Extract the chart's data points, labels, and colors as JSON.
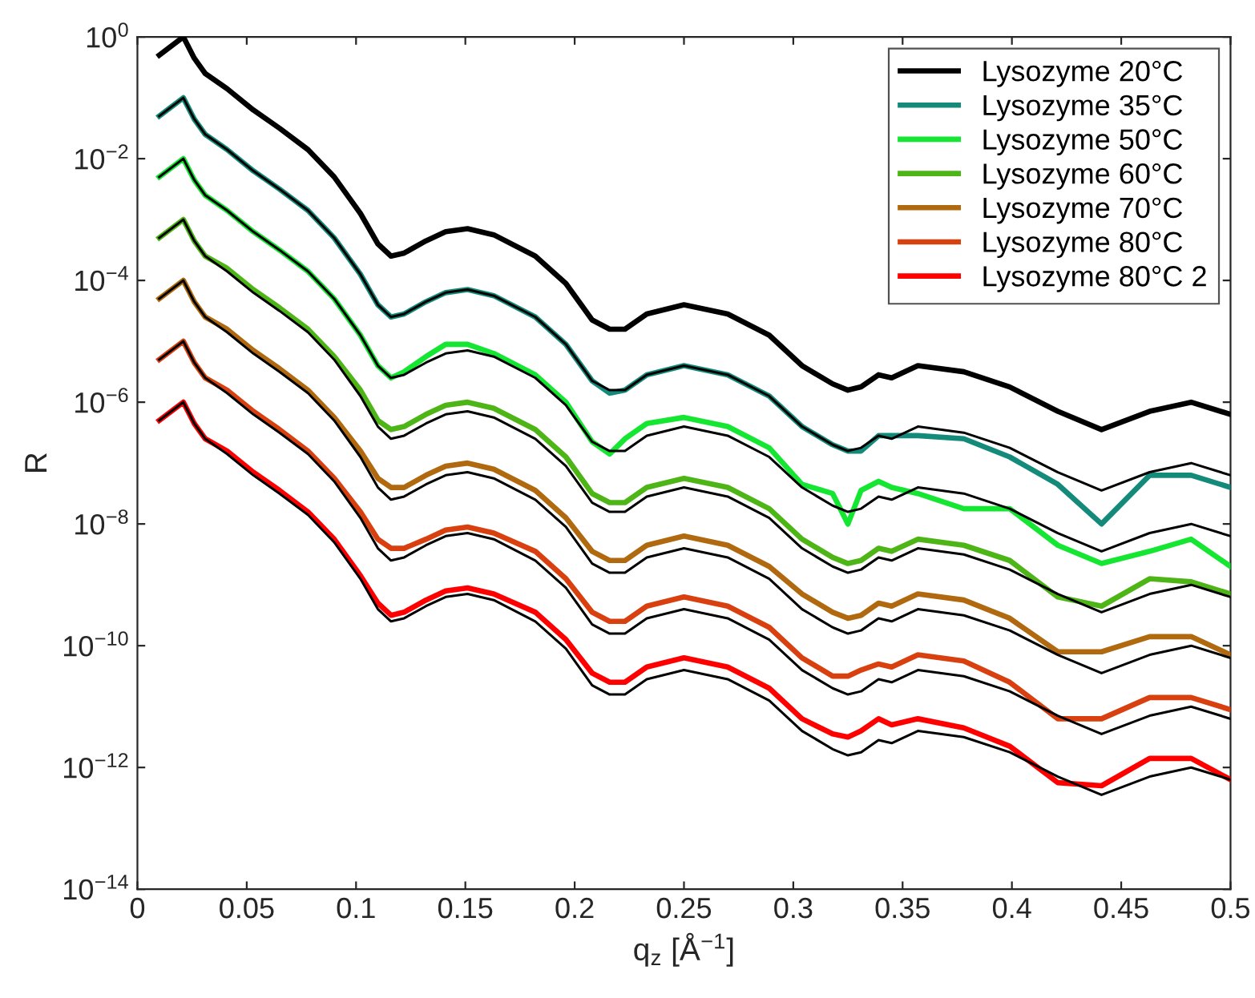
{
  "chart_data": {
    "type": "line",
    "log": "y",
    "legend": "top right",
    "xlabel": "q$_{z}$ [Å$^{−1}$]",
    "ylabel": "R",
    "xlim": [
      0,
      0.5
    ],
    "xticks": [
      0,
      0.05,
      0.1,
      0.15,
      0.2,
      0.25,
      0.3,
      0.35,
      0.4,
      0.45,
      0.5
    ],
    "ylim": [
      1e-14,
      1
    ],
    "yticks": [
      {
        "value": 1e-14,
        "label": "10$^{−14}$"
      },
      {
        "value": 1e-12,
        "label": "10$^{−12}$"
      },
      {
        "value": 1e-10,
        "label": "10$^{−10}$"
      },
      {
        "value": 1e-08,
        "label": "10$^{−8}$"
      },
      {
        "value": 1e-06,
        "label": "10$^{−6}$"
      },
      {
        "value": 0.0001,
        "label": "10$^{−4}$"
      },
      {
        "value": 0.01,
        "label": "10$^{−2}$"
      },
      {
        "value": 1,
        "label": "10$^{0}$"
      }
    ],
    "x": [
      0.01,
      0.021,
      0.026,
      0.031,
      0.041,
      0.053,
      0.065,
      0.078,
      0.09,
      0.102,
      0.11,
      0.116,
      0.122,
      0.132,
      0.141,
      0.151,
      0.163,
      0.182,
      0.196,
      0.208,
      0.216,
      0.223,
      0.233,
      0.25,
      0.27,
      0.289,
      0.304,
      0.318,
      0.325,
      0.331,
      0.339,
      0.345,
      0.357,
      0.378,
      0.399,
      0.421,
      0.441,
      0.463,
      0.482,
      0.5
    ],
    "series": [
      {
        "color": "#000000",
        "values": [
          0.0501,
          0.1,
          0.0447,
          0.0251,
          0.0141,
          0.00631,
          0.00316,
          0.00141,
          0.000501,
          0.000126,
          3.98e-05,
          2.51e-05,
          2.82e-05,
          4.47e-05,
          6.31e-05,
          7.08e-05,
          5.62e-05,
          2.51e-05,
          8.91e-06,
          2.24e-06,
          1.58e-06,
          1.58e-06,
          2.82e-06,
          3.98e-06,
          2.82e-06,
          1.26e-06,
          3.98e-07,
          2e-07,
          1.58e-07,
          1.78e-07,
          2.82e-07,
          2.51e-07,
          3.98e-07,
          3.16e-07,
          1.78e-07,
          7.08e-08,
          3.55e-08,
          7.08e-08,
          1e-07,
          6.31e-08
        ]
      },
      {
        "color": "#000000",
        "values": [
          0.00501,
          0.01,
          0.00447,
          0.00251,
          0.00141,
          0.000631,
          0.000316,
          0.000141,
          5.01e-05,
          1.26e-05,
          3.98e-06,
          2.51e-06,
          2.82e-06,
          4.47e-06,
          6.31e-06,
          7.08e-06,
          5.62e-06,
          2.51e-06,
          8.91e-07,
          2.24e-07,
          1.58e-07,
          1.58e-07,
          2.82e-07,
          3.98e-07,
          2.82e-07,
          1.26e-07,
          3.98e-08,
          2e-08,
          1.58e-08,
          1.78e-08,
          2.82e-08,
          2.51e-08,
          3.98e-08,
          3.16e-08,
          1.78e-08,
          7.08e-09,
          3.55e-09,
          7.08e-09,
          1e-08,
          6.31e-09
        ]
      },
      {
        "color": "#000000",
        "values": [
          0.000501,
          0.001,
          0.000447,
          0.000251,
          0.000141,
          6.31e-05,
          3.16e-05,
          1.41e-05,
          5.01e-06,
          1.26e-06,
          3.98e-07,
          2.51e-07,
          2.82e-07,
          4.47e-07,
          6.31e-07,
          7.08e-07,
          5.62e-07,
          2.51e-07,
          8.91e-08,
          2.24e-08,
          1.58e-08,
          1.58e-08,
          2.82e-08,
          3.98e-08,
          2.82e-08,
          1.26e-08,
          3.98e-09,
          2e-09,
          1.58e-09,
          1.78e-09,
          2.82e-09,
          2.51e-09,
          3.98e-09,
          3.16e-09,
          1.78e-09,
          7.08e-10,
          3.55e-10,
          7.08e-10,
          1e-09,
          6.31e-10
        ]
      },
      {
        "color": "#000000",
        "values": [
          5.01e-05,
          0.0001,
          4.47e-05,
          2.51e-05,
          1.41e-05,
          6.31e-06,
          3.16e-06,
          1.41e-06,
          5.01e-07,
          1.26e-07,
          3.98e-08,
          2.51e-08,
          2.82e-08,
          4.47e-08,
          6.31e-08,
          7.08e-08,
          5.62e-08,
          2.51e-08,
          8.91e-09,
          2.24e-09,
          1.58e-09,
          1.58e-09,
          2.82e-09,
          3.98e-09,
          2.82e-09,
          1.26e-09,
          3.98e-10,
          2e-10,
          1.58e-10,
          1.78e-10,
          2.82e-10,
          2.51e-10,
          3.98e-10,
          3.16e-10,
          1.78e-10,
          7.08e-11,
          3.55e-11,
          7.08e-11,
          1e-10,
          6.31e-11
        ]
      },
      {
        "color": "#000000",
        "values": [
          5.01e-06,
          1e-05,
          4.47e-06,
          2.51e-06,
          1.41e-06,
          6.31e-07,
          3.16e-07,
          1.41e-07,
          5.01e-08,
          1.26e-08,
          3.98e-09,
          2.51e-09,
          2.82e-09,
          4.47e-09,
          6.31e-09,
          7.08e-09,
          5.62e-09,
          2.51e-09,
          8.91e-10,
          2.24e-10,
          1.58e-10,
          1.58e-10,
          2.82e-10,
          3.98e-10,
          2.82e-10,
          1.26e-10,
          3.98e-11,
          2e-11,
          1.58e-11,
          1.78e-11,
          2.82e-11,
          2.51e-11,
          3.98e-11,
          3.16e-11,
          1.78e-11,
          7.08e-12,
          3.55e-12,
          7.08e-12,
          1e-11,
          6.31e-12
        ]
      },
      {
        "color": "#000000",
        "values": [
          5.01e-07,
          1e-06,
          4.47e-07,
          2.51e-07,
          1.41e-07,
          6.31e-08,
          3.16e-08,
          1.41e-08,
          5.01e-09,
          1.26e-09,
          3.98e-10,
          2.51e-10,
          2.82e-10,
          4.47e-10,
          6.31e-10,
          7.08e-10,
          5.62e-10,
          2.51e-10,
          8.91e-11,
          2.24e-11,
          1.58e-11,
          1.58e-11,
          2.82e-11,
          3.98e-11,
          2.82e-11,
          1.26e-11,
          3.98e-12,
          2e-12,
          1.58e-12,
          1.78e-12,
          2.82e-12,
          2.51e-12,
          3.98e-12,
          3.16e-12,
          1.78e-12,
          7.08e-13,
          3.55e-13,
          7.08e-13,
          1e-12,
          6.31e-13
        ]
      },
      {
        "name": "Lysozyme 20°C",
        "color": "#000000",
        "values": [
          0.501,
          1,
          0.447,
          0.251,
          0.141,
          0.0631,
          0.0316,
          0.0141,
          0.00501,
          0.00126,
          0.000398,
          0.000251,
          0.000282,
          0.000447,
          0.000631,
          0.000708,
          0.000562,
          0.000251,
          8.91e-05,
          2.24e-05,
          1.58e-05,
          1.58e-05,
          2.82e-05,
          3.98e-05,
          2.82e-05,
          1.26e-05,
          3.98e-06,
          2e-06,
          1.58e-06,
          1.78e-06,
          2.82e-06,
          2.51e-06,
          3.98e-06,
          3.16e-06,
          1.78e-06,
          7.08e-07,
          3.55e-07,
          7.08e-07,
          1e-06,
          6.31e-07
        ]
      },
      {
        "name": "Lysozyme 35°C",
        "color": "#138a7a",
        "values": [
          0.0501,
          0.1,
          0.0447,
          0.0251,
          0.0141,
          0.00631,
          0.00316,
          0.00141,
          0.000501,
          0.000126,
          3.98e-05,
          2.51e-05,
          2.82e-05,
          4.47e-05,
          6.31e-05,
          7.08e-05,
          5.62e-05,
          2.51e-05,
          8.91e-06,
          2.24e-06,
          1.41e-06,
          1.58e-06,
          2.82e-06,
          3.98e-06,
          2.82e-06,
          1.26e-06,
          3.98e-07,
          2e-07,
          1.58e-07,
          1.58e-07,
          2.82e-07,
          2.82e-07,
          2.82e-07,
          2.51e-07,
          1.26e-07,
          4.47e-08,
          1e-08,
          6.31e-08,
          6.31e-08,
          3.98e-08
        ]
      },
      {
        "name": "Lysozyme 50°C",
        "color": "#14e632",
        "values": [
          0.00501,
          0.01,
          0.00447,
          0.00251,
          0.00141,
          0.000631,
          0.000316,
          0.000141,
          5.01e-05,
          1.26e-05,
          3.98e-06,
          2.51e-06,
          3.16e-06,
          5.62e-06,
          8.91e-06,
          8.91e-06,
          6.31e-06,
          2.82e-06,
          1e-06,
          2.24e-07,
          1.41e-07,
          2.51e-07,
          4.47e-07,
          5.62e-07,
          3.98e-07,
          1.78e-07,
          4.47e-08,
          3.16e-08,
          1e-08,
          3.55e-08,
          5.01e-08,
          3.98e-08,
          3.16e-08,
          1.78e-08,
          1.78e-08,
          4.47e-09,
          2.24e-09,
          3.55e-09,
          5.62e-09,
          2e-09
        ]
      },
      {
        "name": "Lysozyme 60°C",
        "color": "#4db515",
        "values": [
          0.000501,
          0.001,
          0.000447,
          0.000251,
          0.000158,
          7.08e-05,
          3.55e-05,
          1.58e-05,
          5.62e-06,
          1.58e-06,
          5.01e-07,
          3.55e-07,
          3.98e-07,
          6.31e-07,
          8.91e-07,
          1e-06,
          7.94e-07,
          3.55e-07,
          1.26e-07,
          3.16e-08,
          2.24e-08,
          2.24e-08,
          3.98e-08,
          5.62e-08,
          3.98e-08,
          1.78e-08,
          5.62e-09,
          2.82e-09,
          2.24e-09,
          2.51e-09,
          3.98e-09,
          3.55e-09,
          5.62e-09,
          4.47e-09,
          2.51e-09,
          6.31e-10,
          4.47e-10,
          1.26e-09,
          1.12e-09,
          7.08e-10
        ]
      },
      {
        "name": "Lysozyme 70°C",
        "color": "#b0690f",
        "values": [
          5.01e-05,
          0.0001,
          4.47e-05,
          2.51e-05,
          1.58e-05,
          7.08e-06,
          3.55e-06,
          1.58e-06,
          5.62e-07,
          1.58e-07,
          5.62e-08,
          3.98e-08,
          3.98e-08,
          6.31e-08,
          8.91e-08,
          1e-07,
          7.94e-08,
          3.55e-08,
          1.26e-08,
          3.55e-09,
          2.51e-09,
          2.51e-09,
          4.47e-09,
          6.31e-09,
          4.47e-09,
          2e-09,
          7.08e-10,
          3.55e-10,
          2.82e-10,
          3.16e-10,
          5.01e-10,
          4.47e-10,
          7.08e-10,
          5.62e-10,
          2.82e-10,
          7.94e-11,
          7.94e-11,
          1.41e-10,
          1.41e-10,
          7.08e-11
        ]
      },
      {
        "name": "Lysozyme 80°C",
        "color": "#d8400f",
        "values": [
          5.01e-06,
          1e-05,
          4.47e-06,
          2.51e-06,
          1.58e-06,
          7.08e-07,
          3.55e-07,
          1.58e-07,
          5.62e-08,
          1.58e-08,
          5.62e-09,
          3.98e-09,
          3.98e-09,
          5.62e-09,
          7.94e-09,
          8.91e-09,
          7.08e-09,
          3.55e-09,
          1.26e-09,
          3.55e-10,
          2.51e-10,
          2.51e-10,
          4.47e-10,
          6.31e-10,
          4.47e-10,
          2e-10,
          6.31e-11,
          3.16e-11,
          3.16e-11,
          3.98e-11,
          5.01e-11,
          4.47e-11,
          7.08e-11,
          5.62e-11,
          2.51e-11,
          6.31e-12,
          6.31e-12,
          1.41e-11,
          1.41e-11,
          8.91e-12
        ]
      },
      {
        "name": "Lysozyme 80°C 2",
        "color": "#ff0000",
        "values": [
          5.01e-07,
          1e-06,
          4.47e-07,
          2.51e-07,
          1.58e-07,
          7.08e-08,
          3.55e-08,
          1.58e-08,
          5.62e-09,
          1.41e-09,
          5.01e-10,
          3.16e-10,
          3.55e-10,
          5.62e-10,
          7.94e-10,
          8.91e-10,
          7.08e-10,
          3.55e-10,
          1.26e-10,
          3.55e-11,
          2.51e-11,
          2.51e-11,
          4.47e-11,
          6.31e-11,
          4.47e-11,
          2e-11,
          6.31e-12,
          3.55e-12,
          3.16e-12,
          3.98e-12,
          6.31e-12,
          5.01e-12,
          6.31e-12,
          4.47e-12,
          2.24e-12,
          5.62e-13,
          5.01e-13,
          1.41e-12,
          1.41e-12,
          6.31e-13
        ]
      }
    ]
  }
}
